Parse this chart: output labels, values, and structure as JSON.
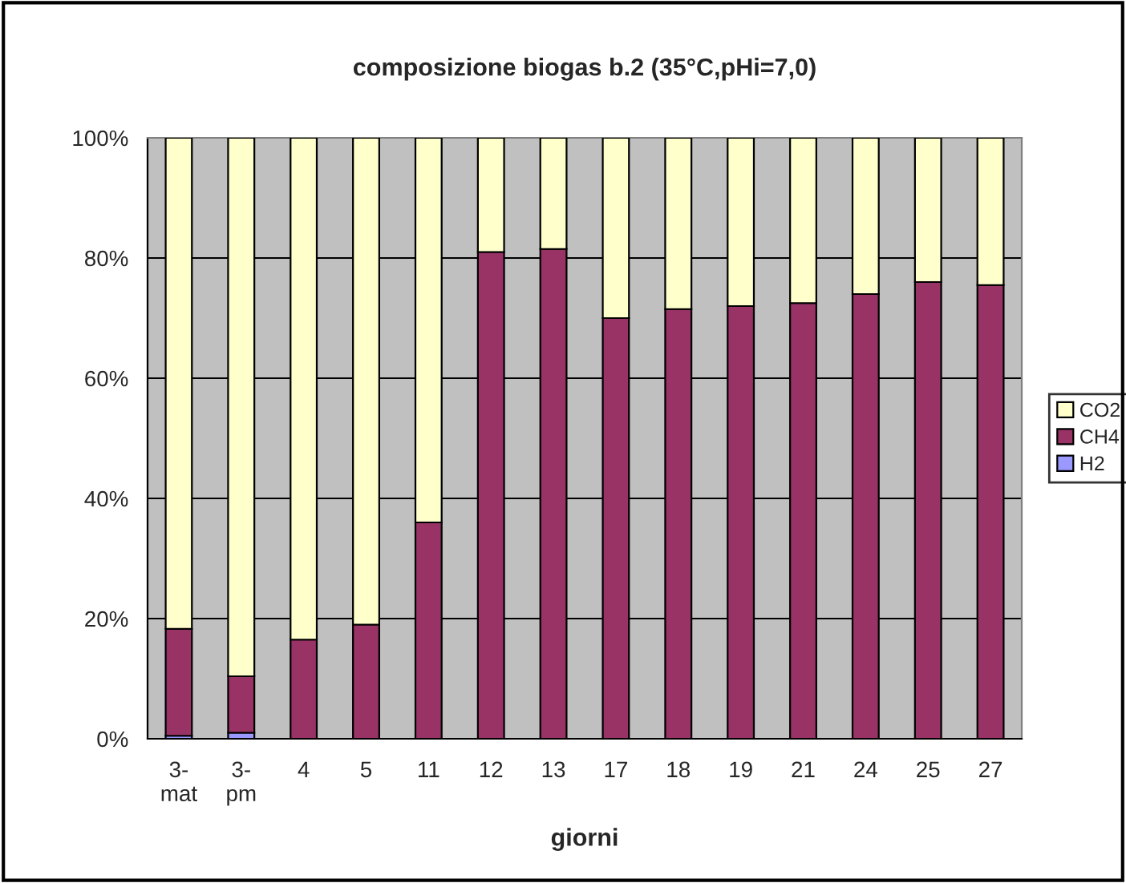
{
  "chart_data": {
    "type": "bar",
    "stacked": true,
    "title": "composizione biogas b.2 (35°C,pHi=7,0)",
    "xlabel": "giorni",
    "categories": [
      "3-mat",
      "3-pm",
      "4",
      "5",
      "11",
      "12",
      "13",
      "17",
      "18",
      "19",
      "21",
      "24",
      "25",
      "27"
    ],
    "series": [
      {
        "name": "H2",
        "color": "#9999ff",
        "values": [
          0.5,
          1.0,
          0,
          0,
          0,
          0,
          0,
          0,
          0,
          0,
          0,
          0,
          0,
          0
        ]
      },
      {
        "name": "CH4",
        "color": "#993366",
        "values": [
          17.8,
          9.4,
          16.5,
          19,
          36,
          81,
          81.5,
          70,
          71.5,
          72,
          72.5,
          74,
          76,
          75.5
        ]
      },
      {
        "name": "CO2",
        "color": "#ffffcc",
        "values": [
          81.7,
          89.6,
          83.5,
          81,
          64,
          19,
          18.5,
          30,
          28.5,
          28,
          27.5,
          26,
          24,
          24.5
        ]
      }
    ],
    "ylim": [
      0,
      100
    ],
    "yticks": [
      {
        "value": 0,
        "label": "0%"
      },
      {
        "value": 20,
        "label": "20%"
      },
      {
        "value": 40,
        "label": "40%"
      },
      {
        "value": 60,
        "label": "60%"
      },
      {
        "value": 80,
        "label": "80%"
      },
      {
        "value": 100,
        "label": "100%"
      }
    ],
    "grid": "y",
    "legend": "right"
  }
}
